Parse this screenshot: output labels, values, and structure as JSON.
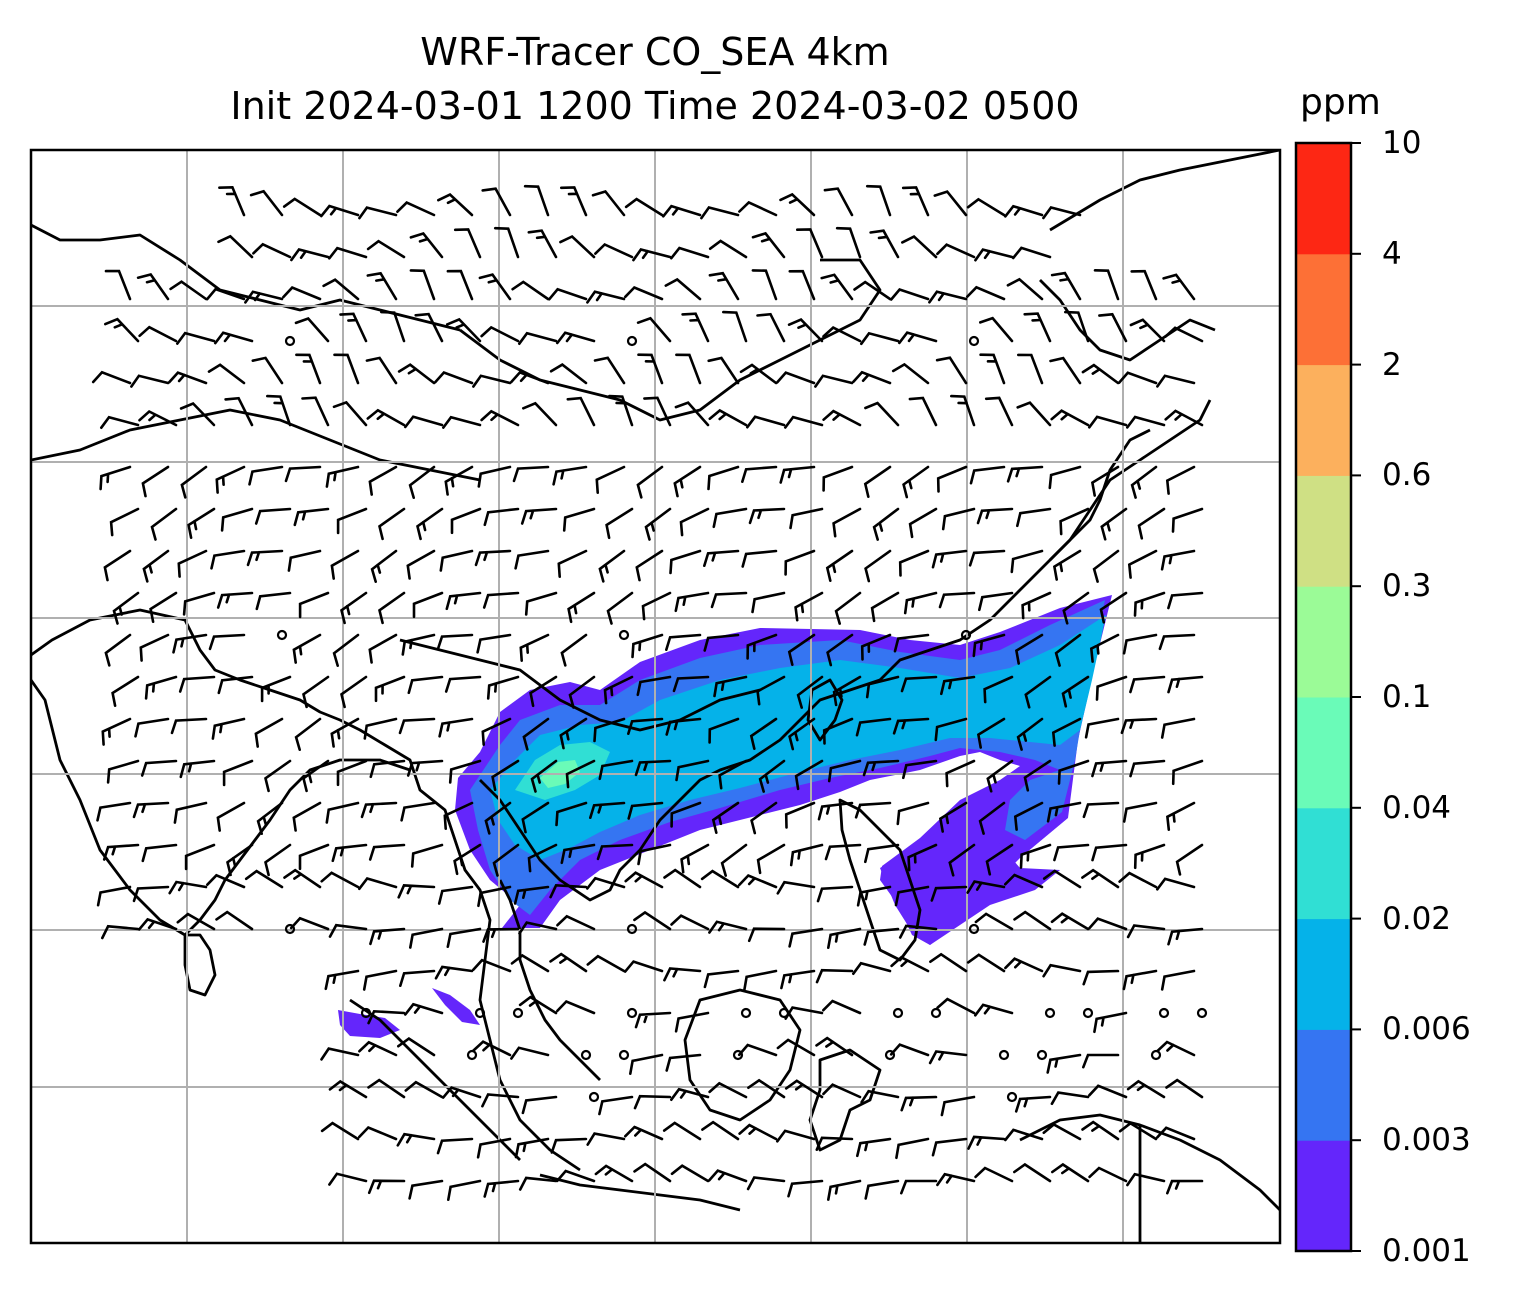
{
  "title": {
    "line1": "WRF-Tracer CO_SEA 4km",
    "line2": "Init 2024-03-01 1200 Time 2024-03-02 0500"
  },
  "colorbar": {
    "unit": "ppm",
    "levels": [
      "0.001",
      "0.003",
      "0.006",
      "0.02",
      "0.04",
      "0.1",
      "0.3",
      "0.6",
      "2",
      "4",
      "10"
    ],
    "colors": [
      "#6426fb",
      "#3575f2",
      "#05b2e9",
      "#30dfd4",
      "#6afbb8",
      "#9bfb97",
      "#cfe084",
      "#fcb05d",
      "#fd7036",
      "#fd2714"
    ]
  },
  "map": {
    "gridlines": true,
    "field": "CO tracer concentration",
    "overlay": "wind barbs"
  }
}
